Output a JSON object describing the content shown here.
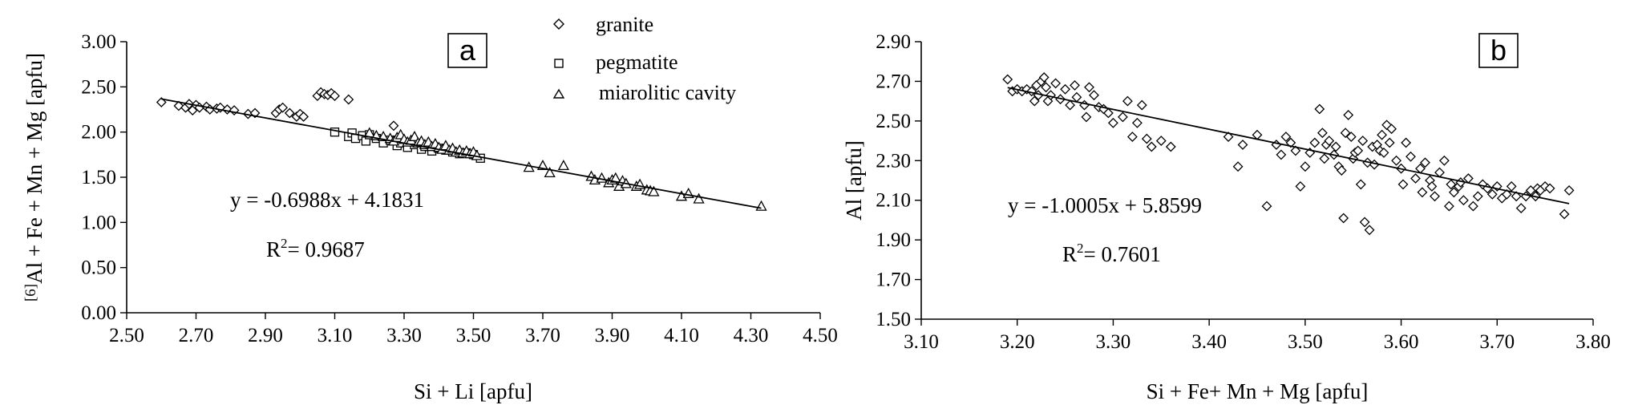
{
  "chart_data": [
    {
      "type": "scatter",
      "panel_label": "a",
      "xlabel": "Si + Li [apfu]",
      "ylabel_superscript": "[6]",
      "ylabel": "Al + Fe + Mn + Mg [apfu]",
      "xlim": [
        2.5,
        4.5
      ],
      "ylim": [
        0,
        3
      ],
      "xticks": [
        "2.50",
        "2.70",
        "2.90",
        "3.10",
        "3.30",
        "3.50",
        "3.70",
        "3.90",
        "4.10",
        "4.30",
        "4.50"
      ],
      "yticks": [
        "0.00",
        "0.50",
        "1.00",
        "1.50",
        "2.00",
        "2.50",
        "3.00"
      ],
      "grid": false,
      "legend_position": "top-right",
      "legend": [
        {
          "name": "granite",
          "marker": "diamond"
        },
        {
          "name": "pegmatite",
          "marker": "square"
        },
        {
          "name": "miarolitic cavity",
          "marker": "triangle"
        }
      ],
      "equation": "y = -0.6988x + 4.1831",
      "r2_label": "R",
      "r2_exp": "2",
      "r2_value": "= 0.9687",
      "trendline": {
        "slope": -0.6988,
        "intercept": 4.1831,
        "x_range": [
          2.6,
          4.33
        ]
      },
      "series": [
        {
          "name": "granite",
          "marker": "diamond",
          "points": [
            [
              2.6,
              2.33
            ],
            [
              2.65,
              2.29
            ],
            [
              2.67,
              2.27
            ],
            [
              2.68,
              2.31
            ],
            [
              2.69,
              2.24
            ],
            [
              2.7,
              2.3
            ],
            [
              2.71,
              2.27
            ],
            [
              2.73,
              2.28
            ],
            [
              2.74,
              2.25
            ],
            [
              2.76,
              2.26
            ],
            [
              2.77,
              2.27
            ],
            [
              2.79,
              2.25
            ],
            [
              2.81,
              2.24
            ],
            [
              2.85,
              2.2
            ],
            [
              2.87,
              2.21
            ],
            [
              2.93,
              2.21
            ],
            [
              2.94,
              2.25
            ],
            [
              2.95,
              2.27
            ],
            [
              2.97,
              2.21
            ],
            [
              2.99,
              2.17
            ],
            [
              3.0,
              2.2
            ],
            [
              3.01,
              2.17
            ],
            [
              3.05,
              2.4
            ],
            [
              3.06,
              2.44
            ],
            [
              3.07,
              2.42
            ],
            [
              3.08,
              2.41
            ],
            [
              3.09,
              2.43
            ],
            [
              3.1,
              2.4
            ],
            [
              3.14,
              2.36
            ],
            [
              3.27,
              2.07
            ]
          ]
        },
        {
          "name": "pegmatite",
          "marker": "square",
          "points": [
            [
              3.1,
              2.0
            ],
            [
              3.14,
              1.95
            ],
            [
              3.15,
              1.99
            ],
            [
              3.16,
              1.93
            ],
            [
              3.18,
              1.96
            ],
            [
              3.19,
              1.9
            ],
            [
              3.2,
              1.97
            ],
            [
              3.22,
              1.93
            ],
            [
              3.24,
              1.88
            ],
            [
              3.26,
              1.91
            ],
            [
              3.28,
              1.85
            ],
            [
              3.29,
              1.88
            ],
            [
              3.31,
              1.83
            ],
            [
              3.33,
              1.86
            ],
            [
              3.35,
              1.81
            ],
            [
              3.36,
              1.84
            ],
            [
              3.38,
              1.79
            ],
            [
              3.4,
              1.82
            ],
            [
              3.42,
              1.8
            ],
            [
              3.44,
              1.78
            ],
            [
              3.46,
              1.76
            ],
            [
              3.48,
              1.77
            ],
            [
              3.5,
              1.75
            ],
            [
              3.52,
              1.71
            ]
          ]
        },
        {
          "name": "miarolitic cavity",
          "marker": "triangle",
          "points": [
            [
              3.2,
              1.99
            ],
            [
              3.22,
              1.96
            ],
            [
              3.24,
              1.95
            ],
            [
              3.26,
              1.93
            ],
            [
              3.27,
              1.9
            ],
            [
              3.28,
              1.94
            ],
            [
              3.29,
              1.97
            ],
            [
              3.3,
              1.92
            ],
            [
              3.31,
              1.89
            ],
            [
              3.32,
              1.91
            ],
            [
              3.33,
              1.95
            ],
            [
              3.34,
              1.88
            ],
            [
              3.35,
              1.9
            ],
            [
              3.36,
              1.86
            ],
            [
              3.37,
              1.89
            ],
            [
              3.38,
              1.84
            ],
            [
              3.39,
              1.87
            ],
            [
              3.4,
              1.83
            ],
            [
              3.41,
              1.81
            ],
            [
              3.42,
              1.85
            ],
            [
              3.43,
              1.8
            ],
            [
              3.44,
              1.82
            ],
            [
              3.45,
              1.78
            ],
            [
              3.46,
              1.8
            ],
            [
              3.47,
              1.77
            ],
            [
              3.48,
              1.79
            ],
            [
              3.49,
              1.76
            ],
            [
              3.5,
              1.78
            ],
            [
              3.51,
              1.74
            ],
            [
              3.66,
              1.61
            ],
            [
              3.7,
              1.63
            ],
            [
              3.72,
              1.55
            ],
            [
              3.76,
              1.63
            ],
            [
              3.84,
              1.51
            ],
            [
              3.85,
              1.47
            ],
            [
              3.87,
              1.49
            ],
            [
              3.89,
              1.44
            ],
            [
              3.9,
              1.47
            ],
            [
              3.91,
              1.49
            ],
            [
              3.92,
              1.4
            ],
            [
              3.93,
              1.46
            ],
            [
              3.94,
              1.43
            ],
            [
              3.97,
              1.4
            ],
            [
              3.98,
              1.42
            ],
            [
              4.0,
              1.36
            ],
            [
              4.01,
              1.35
            ],
            [
              4.02,
              1.34
            ],
            [
              4.1,
              1.29
            ],
            [
              4.12,
              1.32
            ],
            [
              4.15,
              1.26
            ],
            [
              4.33,
              1.18
            ]
          ]
        }
      ]
    },
    {
      "type": "scatter",
      "panel_label": "b",
      "xlabel": "Si + Fe+ Mn + Mg [apfu]",
      "ylabel": "Al [apfu]",
      "xlim": [
        3.1,
        3.8
      ],
      "ylim": [
        1.5,
        2.9
      ],
      "xticks": [
        "3.10",
        "3.20",
        "3.30",
        "3.40",
        "3.50",
        "3.60",
        "3.70",
        "3.80"
      ],
      "yticks": [
        "1.50",
        "1.70",
        "1.90",
        "2.10",
        "2.30",
        "2.50",
        "2.70",
        "2.90"
      ],
      "grid": false,
      "equation": "y = -1.0005x + 5.8599",
      "r2_label": "R",
      "r2_exp": "2",
      "r2_value": "= 0.7601",
      "trendline": {
        "slope": -1.0005,
        "intercept": 5.8599,
        "x_range": [
          3.19,
          3.775
        ]
      },
      "series": [
        {
          "name": "",
          "marker": "diamond",
          "points": [
            [
              3.19,
              2.71
            ],
            [
              3.195,
              2.65
            ],
            [
              3.2,
              2.66
            ],
            [
              3.205,
              2.65
            ],
            [
              3.21,
              2.66
            ],
            [
              3.215,
              2.65
            ],
            [
              3.218,
              2.6
            ],
            [
              3.22,
              2.68
            ],
            [
              3.222,
              2.63
            ],
            [
              3.225,
              2.7
            ],
            [
              3.228,
              2.72
            ],
            [
              3.23,
              2.67
            ],
            [
              3.232,
              2.6
            ],
            [
              3.235,
              2.63
            ],
            [
              3.24,
              2.69
            ],
            [
              3.245,
              2.61
            ],
            [
              3.25,
              2.66
            ],
            [
              3.255,
              2.58
            ],
            [
              3.26,
              2.68
            ],
            [
              3.262,
              2.62
            ],
            [
              3.27,
              2.58
            ],
            [
              3.272,
              2.52
            ],
            [
              3.275,
              2.67
            ],
            [
              3.28,
              2.63
            ],
            [
              3.285,
              2.57
            ],
            [
              3.29,
              2.56
            ],
            [
              3.295,
              2.54
            ],
            [
              3.3,
              2.49
            ],
            [
              3.31,
              2.52
            ],
            [
              3.315,
              2.6
            ],
            [
              3.32,
              2.42
            ],
            [
              3.325,
              2.49
            ],
            [
              3.33,
              2.58
            ],
            [
              3.335,
              2.41
            ],
            [
              3.34,
              2.37
            ],
            [
              3.35,
              2.4
            ],
            [
              3.36,
              2.37
            ],
            [
              3.42,
              2.42
            ],
            [
              3.43,
              2.27
            ],
            [
              3.435,
              2.38
            ],
            [
              3.45,
              2.43
            ],
            [
              3.46,
              2.07
            ],
            [
              3.47,
              2.38
            ],
            [
              3.475,
              2.33
            ],
            [
              3.48,
              2.42
            ],
            [
              3.485,
              2.39
            ],
            [
              3.49,
              2.35
            ],
            [
              3.495,
              2.17
            ],
            [
              3.5,
              2.27
            ],
            [
              3.505,
              2.34
            ],
            [
              3.51,
              2.39
            ],
            [
              3.515,
              2.56
            ],
            [
              3.518,
              2.44
            ],
            [
              3.52,
              2.31
            ],
            [
              3.522,
              2.38
            ],
            [
              3.525,
              2.4
            ],
            [
              3.53,
              2.33
            ],
            [
              3.532,
              2.37
            ],
            [
              3.535,
              2.27
            ],
            [
              3.538,
              2.25
            ],
            [
              3.54,
              2.01
            ],
            [
              3.542,
              2.44
            ],
            [
              3.545,
              2.53
            ],
            [
              3.548,
              2.42
            ],
            [
              3.55,
              2.31
            ],
            [
              3.552,
              2.34
            ],
            [
              3.555,
              2.35
            ],
            [
              3.558,
              2.18
            ],
            [
              3.56,
              2.4
            ],
            [
              3.562,
              1.99
            ],
            [
              3.565,
              2.29
            ],
            [
              3.567,
              1.95
            ],
            [
              3.57,
              2.37
            ],
            [
              3.572,
              2.28
            ],
            [
              3.575,
              2.38
            ],
            [
              3.578,
              2.35
            ],
            [
              3.58,
              2.43
            ],
            [
              3.582,
              2.34
            ],
            [
              3.585,
              2.48
            ],
            [
              3.588,
              2.39
            ],
            [
              3.59,
              2.46
            ],
            [
              3.595,
              2.3
            ],
            [
              3.6,
              2.26
            ],
            [
              3.602,
              2.18
            ],
            [
              3.605,
              2.39
            ],
            [
              3.61,
              2.32
            ],
            [
              3.615,
              2.21
            ],
            [
              3.62,
              2.26
            ],
            [
              3.622,
              2.14
            ],
            [
              3.625,
              2.29
            ],
            [
              3.63,
              2.2
            ],
            [
              3.632,
              2.17
            ],
            [
              3.635,
              2.12
            ],
            [
              3.64,
              2.24
            ],
            [
              3.645,
              2.3
            ],
            [
              3.65,
              2.07
            ],
            [
              3.652,
              2.18
            ],
            [
              3.655,
              2.14
            ],
            [
              3.66,
              2.17
            ],
            [
              3.662,
              2.19
            ],
            [
              3.665,
              2.1
            ],
            [
              3.67,
              2.21
            ],
            [
              3.675,
              2.07
            ],
            [
              3.68,
              2.12
            ],
            [
              3.685,
              2.18
            ],
            [
              3.69,
              2.16
            ],
            [
              3.695,
              2.13
            ],
            [
              3.7,
              2.17
            ],
            [
              3.705,
              2.11
            ],
            [
              3.71,
              2.13
            ],
            [
              3.715,
              2.17
            ],
            [
              3.72,
              2.12
            ],
            [
              3.725,
              2.06
            ],
            [
              3.73,
              2.12
            ],
            [
              3.735,
              2.15
            ],
            [
              3.74,
              2.12
            ],
            [
              3.742,
              2.16
            ],
            [
              3.745,
              2.15
            ],
            [
              3.75,
              2.17
            ],
            [
              3.755,
              2.16
            ],
            [
              3.77,
              2.03
            ],
            [
              3.775,
              2.15
            ]
          ]
        }
      ]
    }
  ]
}
